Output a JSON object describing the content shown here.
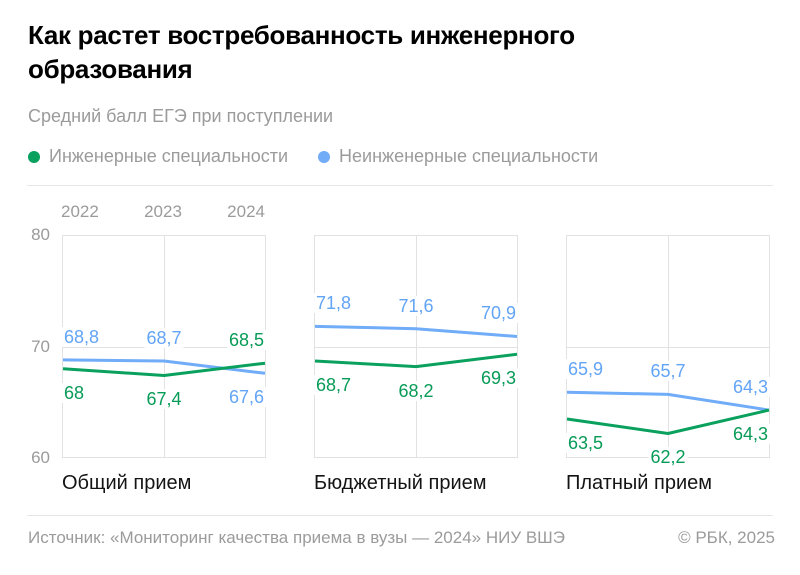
{
  "header": {
    "title": "Как растет востребованность инженерного\nобразования",
    "subtitle": "Средний балл ЕГЭ при поступлении"
  },
  "legend": {
    "items": [
      {
        "label": "Инженерные специальности",
        "color_key": "green"
      },
      {
        "label": "Неинженерные специальности",
        "color_key": "blue"
      }
    ]
  },
  "colors": {
    "green": "#0aa05e",
    "blue": "#70acf7",
    "grid": "#e2e2e2",
    "muted_text": "#9b9b9b",
    "text": "#141414"
  },
  "chart_data": {
    "type": "line",
    "x": [
      "2022",
      "2023",
      "2024"
    ],
    "ylim": [
      60,
      80
    ],
    "yticks": [
      80,
      70,
      60
    ],
    "grid": "on",
    "legend_position": "top",
    "panels": [
      {
        "caption": "Общий прием",
        "series": [
          {
            "name": "Инженерные специальности",
            "color_key": "green",
            "values": [
              68,
              67.4,
              68.5
            ],
            "labels": [
              "68",
              "67,4",
              "68,5"
            ]
          },
          {
            "name": "Неинженерные специальности",
            "color_key": "blue",
            "values": [
              68.8,
              68.7,
              67.6
            ],
            "labels": [
              "68,8",
              "68,7",
              "67,6"
            ]
          }
        ]
      },
      {
        "caption": "Бюджетный прием",
        "series": [
          {
            "name": "Инженерные специальности",
            "color_key": "green",
            "values": [
              68.7,
              68.2,
              69.3
            ],
            "labels": [
              "68,7",
              "68,2",
              "69,3"
            ]
          },
          {
            "name": "Неинженерные специальности",
            "color_key": "blue",
            "values": [
              71.8,
              71.6,
              70.9
            ],
            "labels": [
              "71,8",
              "71,6",
              "70,9"
            ]
          }
        ]
      },
      {
        "caption": "Платный прием",
        "series": [
          {
            "name": "Инженерные специальности",
            "color_key": "green",
            "values": [
              63.5,
              62.2,
              64.3
            ],
            "labels": [
              "63,5",
              "62,2",
              "64,3"
            ]
          },
          {
            "name": "Неинженерные специальности",
            "color_key": "blue",
            "values": [
              65.9,
              65.7,
              64.3
            ],
            "labels": [
              "65,9",
              "65,7",
              "64,3"
            ]
          }
        ]
      }
    ]
  },
  "footer": {
    "source": "Источник: «Мониторинг качества приема в вузы — 2024» НИУ ВШЭ",
    "copyright": "© РБК, 2025"
  }
}
